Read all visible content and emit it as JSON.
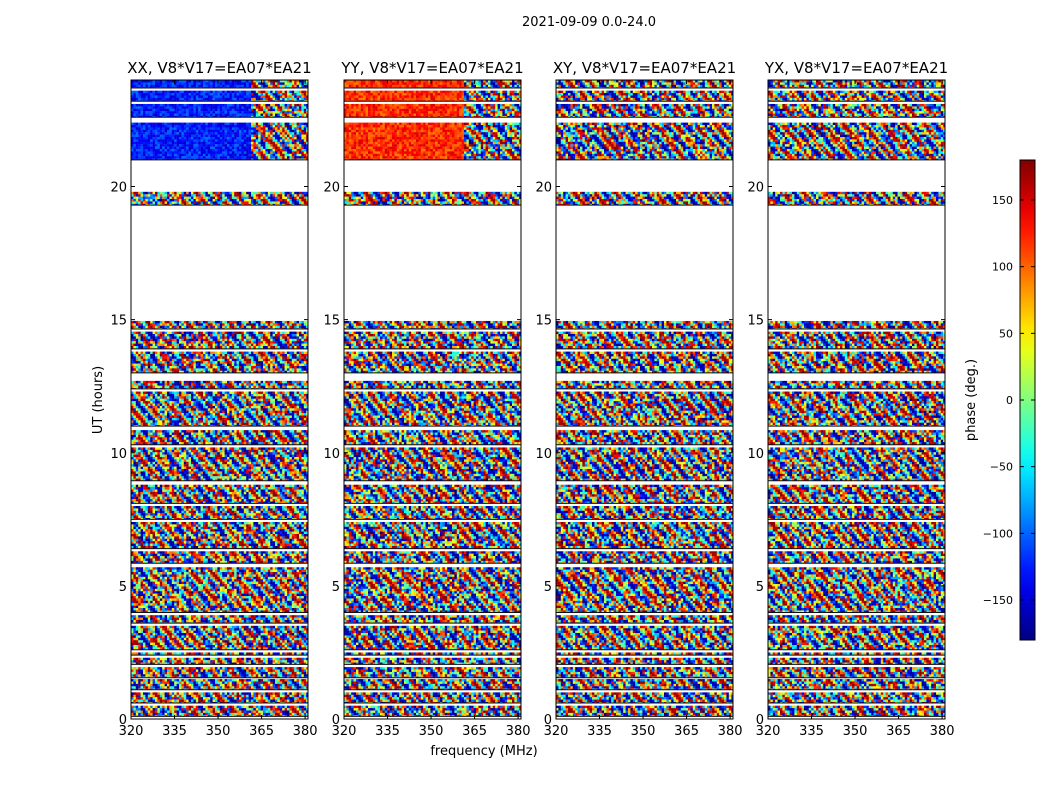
{
  "figure": {
    "suptitle": "2021-09-09 0.0-24.0",
    "xlabel": "frequency (MHz)",
    "ylabel": "UT (hours)",
    "colorbar_label": "phase (deg.)"
  },
  "chart_data": {
    "type": "heatmap",
    "panels": [
      {
        "title": "XX, V8*V17=EA07*EA21",
        "pol": "XX"
      },
      {
        "title": "YY, V8*V17=EA07*EA21",
        "pol": "YY"
      },
      {
        "title": "XY, V8*V17=EA07*EA21",
        "pol": "XY"
      },
      {
        "title": "YX, V8*V17=EA07*EA21",
        "pol": "YX"
      }
    ],
    "x_range": [
      320,
      381
    ],
    "x_ticks": [
      320,
      335,
      350,
      365,
      380
    ],
    "y_range": [
      0,
      24
    ],
    "y_ticks": [
      0,
      5,
      10,
      15,
      20
    ],
    "colorbar": {
      "range": [
        -180,
        180
      ],
      "ticks": [
        -150,
        -100,
        -50,
        0,
        50,
        100,
        150
      ],
      "colormap": "jet"
    },
    "observed_intervals_ut": [
      [
        0.1,
        0.5
      ],
      [
        0.6,
        1.0
      ],
      [
        1.1,
        1.5
      ],
      [
        1.55,
        1.95
      ],
      [
        2.05,
        2.3
      ],
      [
        2.4,
        2.5
      ],
      [
        2.6,
        3.5
      ],
      [
        3.6,
        3.9
      ],
      [
        4.0,
        5.7
      ],
      [
        5.85,
        6.3
      ],
      [
        6.4,
        7.4
      ],
      [
        7.5,
        8.0
      ],
      [
        8.1,
        8.8
      ],
      [
        8.95,
        10.2
      ],
      [
        10.3,
        10.85
      ],
      [
        11.0,
        12.3
      ],
      [
        12.4,
        12.7
      ],
      [
        13.0,
        13.8
      ],
      [
        13.9,
        14.55
      ],
      [
        14.65,
        14.95
      ],
      [
        19.3,
        19.8
      ],
      [
        21.0,
        22.4
      ],
      [
        22.6,
        23.1
      ],
      [
        23.2,
        23.6
      ],
      [
        23.7,
        24.0
      ]
    ],
    "xx_yy_coherent_phase_deg": {
      "intervals_ut": [
        [
          21.0,
          24.0
        ]
      ],
      "freq_range_mhz": [
        320,
        361
      ],
      "XX": -125,
      "YY": 120
    },
    "colors": {
      "axes": "#000000",
      "background": "#ffffff"
    }
  }
}
